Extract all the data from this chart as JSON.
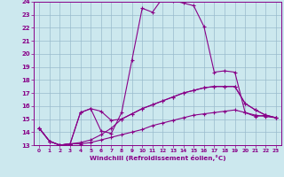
{
  "xlabel": "Windchill (Refroidissement éolien,°C)",
  "xlim": [
    -0.5,
    23.5
  ],
  "ylim": [
    13,
    24
  ],
  "xticks": [
    0,
    1,
    2,
    3,
    4,
    5,
    6,
    7,
    8,
    9,
    10,
    11,
    12,
    13,
    14,
    15,
    16,
    17,
    18,
    19,
    20,
    21,
    22,
    23
  ],
  "yticks": [
    13,
    14,
    15,
    16,
    17,
    18,
    19,
    20,
    21,
    22,
    23,
    24
  ],
  "bg_color": "#cce8ee",
  "line_color": "#880088",
  "grid_color": "#99bbcc",
  "lines": [
    {
      "x": [
        0,
        1,
        2,
        3,
        4,
        5,
        6,
        7,
        8,
        9,
        10,
        11,
        12,
        13,
        14,
        15,
        16,
        17,
        18,
        19,
        20,
        21,
        22,
        23
      ],
      "y": [
        14.3,
        13.3,
        13.0,
        13.1,
        15.5,
        15.8,
        14.1,
        13.9,
        15.5,
        19.5,
        23.5,
        23.2,
        24.3,
        24.1,
        23.9,
        23.7,
        22.1,
        18.6,
        18.7,
        18.6,
        15.5,
        15.2,
        15.3,
        15.1
      ]
    },
    {
      "x": [
        0,
        1,
        2,
        3,
        4,
        5,
        6,
        7,
        8,
        9,
        10,
        11,
        12,
        13,
        14,
        15,
        16,
        17,
        18,
        19,
        20,
        21,
        22,
        23
      ],
      "y": [
        14.3,
        13.3,
        13.0,
        13.1,
        13.2,
        13.4,
        13.8,
        14.3,
        15.0,
        15.4,
        15.8,
        16.1,
        16.4,
        16.7,
        17.0,
        17.2,
        17.4,
        17.5,
        17.5,
        17.5,
        16.2,
        15.7,
        15.3,
        15.1
      ]
    },
    {
      "x": [
        0,
        1,
        2,
        3,
        4,
        5,
        6,
        7,
        8,
        9,
        10,
        11,
        12,
        13,
        14,
        15,
        16,
        17,
        18,
        19,
        20,
        21,
        22,
        23
      ],
      "y": [
        14.3,
        13.3,
        13.0,
        13.1,
        13.1,
        13.2,
        13.4,
        13.6,
        13.8,
        14.0,
        14.2,
        14.5,
        14.7,
        14.9,
        15.1,
        15.3,
        15.4,
        15.5,
        15.6,
        15.7,
        15.5,
        15.3,
        15.2,
        15.1
      ]
    },
    {
      "x": [
        0,
        1,
        2,
        3,
        4,
        5,
        6,
        7,
        8,
        9,
        10,
        11,
        12,
        13,
        14,
        15,
        16,
        17,
        18,
        19,
        20,
        21,
        22,
        23
      ],
      "y": [
        14.3,
        13.3,
        13.0,
        13.1,
        15.5,
        15.8,
        15.6,
        14.9,
        15.0,
        15.4,
        15.8,
        16.1,
        16.4,
        16.7,
        17.0,
        17.2,
        17.4,
        17.5,
        17.5,
        17.5,
        16.2,
        15.7,
        15.3,
        15.1
      ]
    }
  ]
}
